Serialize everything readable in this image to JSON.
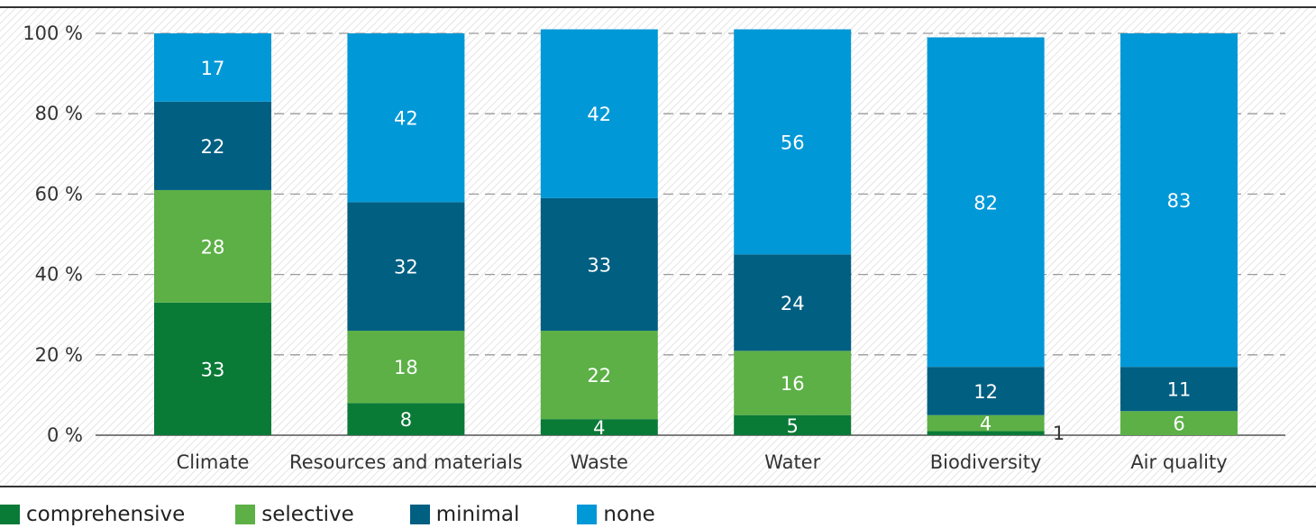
{
  "chart_data": {
    "type": "bar",
    "stacked": true,
    "categories": [
      "Climate",
      "Resources and materials",
      "Waste",
      "Water",
      "Biodiversity",
      "Air quality"
    ],
    "series": [
      {
        "name": "comprehensive",
        "values": [
          33,
          8,
          4,
          5,
          1,
          0
        ],
        "color": "#0a7a37"
      },
      {
        "name": "selective",
        "values": [
          28,
          18,
          22,
          16,
          4,
          6
        ],
        "color": "#5cb046"
      },
      {
        "name": "minimal",
        "values": [
          22,
          32,
          33,
          24,
          12,
          11
        ],
        "color": "#015f82"
      },
      {
        "name": "none",
        "values": [
          17,
          42,
          42,
          56,
          82,
          83
        ],
        "color": "#0198d7"
      }
    ],
    "segment_labels": [
      [
        "33",
        "8",
        "4",
        "5",
        "1",
        ""
      ],
      [
        "28",
        "18",
        "22",
        "16",
        "4",
        "6"
      ],
      [
        "22",
        "32",
        "33",
        "24",
        "12",
        "11"
      ],
      [
        "17",
        "42",
        "42",
        "56",
        "82",
        "83"
      ]
    ],
    "yticks": [
      {
        "value": 0,
        "label": "0 %"
      },
      {
        "value": 20,
        "label": "20 %"
      },
      {
        "value": 40,
        "label": "40 %"
      },
      {
        "value": 60,
        "label": "60 %"
      },
      {
        "value": 80,
        "label": "80 %"
      },
      {
        "value": 100,
        "label": "100 %"
      }
    ],
    "ylim": [
      0,
      100
    ],
    "grid": true,
    "legend_position": "bottom-left",
    "xlabel": "",
    "ylabel": "",
    "title": ""
  }
}
